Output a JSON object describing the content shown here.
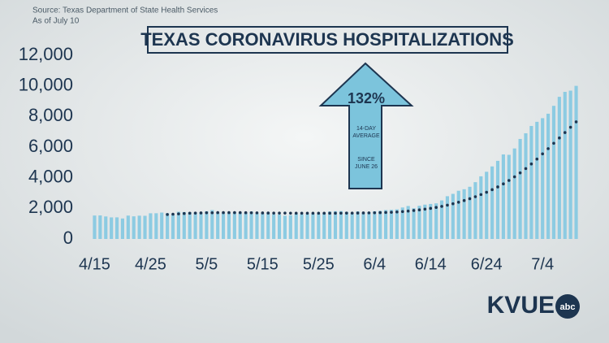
{
  "chart_data": {
    "type": "bar",
    "title": "TEXAS CORONAVIRUS HOSPITALIZATIONS",
    "source": "Source: Texas Department of State Health Services",
    "subtitle": "As of July 10",
    "annotations": [
      "132%",
      "14-DAY",
      "AVERAGE",
      "SINCE",
      "JUNE 26"
    ],
    "categories": [
      "4/15",
      null,
      null,
      null,
      null,
      null,
      null,
      null,
      null,
      null,
      "4/25",
      null,
      null,
      null,
      null,
      null,
      null,
      null,
      null,
      null,
      "5/5",
      null,
      null,
      null,
      null,
      null,
      null,
      null,
      null,
      null,
      "5/15",
      null,
      null,
      null,
      null,
      null,
      null,
      null,
      null,
      null,
      "5/25",
      null,
      null,
      null,
      null,
      null,
      null,
      null,
      null,
      null,
      "6/4",
      null,
      null,
      null,
      null,
      null,
      null,
      null,
      null,
      null,
      "6/14",
      null,
      null,
      null,
      null,
      null,
      null,
      null,
      null,
      null,
      "6/24",
      null,
      null,
      null,
      null,
      null,
      null,
      null,
      null,
      null,
      "7/4",
      null,
      null,
      null,
      null,
      null,
      null
    ],
    "series": [
      {
        "type": "bar",
        "color": "#8ccbe2",
        "values": [
          1532,
          1538,
          1471,
          1409,
          1411,
          1338,
          1527,
          1478,
          1522,
          1514,
          1678,
          1680,
          1725,
          1682,
          1615,
          1778,
          1758,
          1749,
          1736,
          1734,
          1812,
          1888,
          1733,
          1719,
          1680,
          1753,
          1725,
          1716,
          1791,
          1676,
          1678,
          1732,
          1626,
          1600,
          1518,
          1551,
          1648,
          1608,
          1622,
          1656,
          1634,
          1688,
          1796,
          1815,
          1822,
          1773,
          1686,
          1800,
          1719,
          1750,
          1812,
          1835,
          1888,
          1906,
          1935,
          2056,
          2153,
          2008,
          2166,
          2242,
          2287,
          2326,
          2518,
          2793,
          2947,
          3148,
          3247,
          3409,
          3711,
          4092,
          4389,
          4739,
          5102,
          5523,
          5497,
          5913,
          6533,
          6904,
          7382,
          7652,
          7890,
          8181,
          8698,
          9286,
          9610,
          9689,
          10002
        ]
      },
      {
        "type": "line",
        "color": "#1d3550",
        "values": [
          null,
          null,
          null,
          null,
          null,
          null,
          null,
          null,
          null,
          null,
          null,
          null,
          null,
          1600,
          1620,
          1640,
          1660,
          1680,
          1690,
          1700,
          1710,
          1710,
          1720,
          1720,
          1720,
          1720,
          1720,
          1715,
          1710,
          1705,
          1700,
          1695,
          1690,
          1690,
          1690,
          1685,
          1680,
          1680,
          1680,
          1680,
          1680,
          1680,
          1680,
          1680,
          1685,
          1690,
          1690,
          1695,
          1700,
          1705,
          1710,
          1720,
          1730,
          1745,
          1765,
          1790,
          1820,
          1860,
          1900,
          1950,
          2000,
          2060,
          2130,
          2210,
          2300,
          2400,
          2510,
          2630,
          2760,
          2900,
          3050,
          3220,
          3400,
          3600,
          3820,
          4060,
          4320,
          4600,
          4900,
          5220,
          5560,
          5900,
          6250,
          6600,
          6950,
          7300,
          7650
        ]
      }
    ],
    "ylim": [
      0,
      12000
    ],
    "yticks": [
      0,
      {
        "value": 2000,
        "label": "2,000"
      },
      {
        "value": 4000,
        "label": "4,000"
      },
      {
        "value": 6000,
        "label": "6,000"
      },
      {
        "value": 8000,
        "label": "8,000"
      },
      {
        "value": 10000,
        "label": "10,000"
      },
      {
        "value": 12000,
        "label": "12,000"
      }
    ],
    "grid": false
  },
  "logo": {
    "text": "KVUE",
    "badge": "abc"
  }
}
